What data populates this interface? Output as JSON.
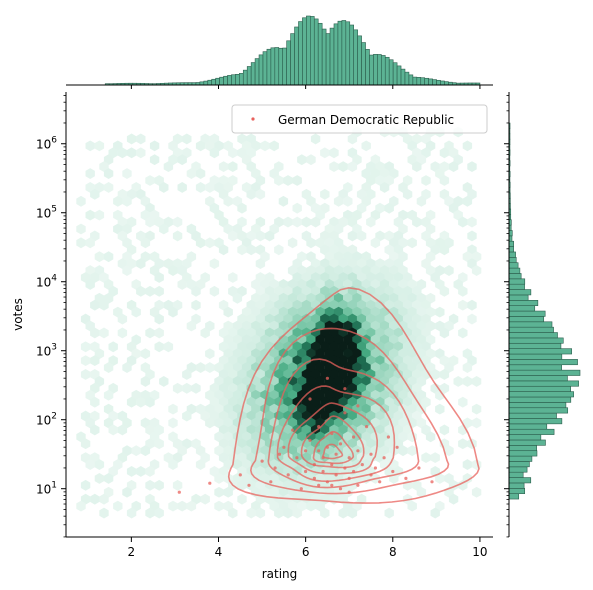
{
  "chart_data": {
    "type": "jointplot",
    "xlabel": "rating",
    "ylabel": "votes",
    "xlim": [
      0.5,
      10.3
    ],
    "ylim_log10": [
      0.3,
      6.75
    ],
    "y_scale": "log",
    "x_ticks": [
      2,
      4,
      6,
      8,
      10
    ],
    "x_tick_labels": [
      "2",
      "4",
      "6",
      "8",
      "10"
    ],
    "y_ticks": [
      1,
      2,
      3,
      4,
      5,
      6
    ],
    "y_tick_labels": [
      {
        "base": "10",
        "exp": "1"
      },
      {
        "base": "10",
        "exp": "2"
      },
      {
        "base": "10",
        "exp": "3"
      },
      {
        "base": "10",
        "exp": "4"
      },
      {
        "base": "10",
        "exp": "5"
      },
      {
        "base": "10",
        "exp": "6"
      }
    ],
    "legend": {
      "placement": "top-right",
      "entries": [
        "German Democratic Republic"
      ]
    },
    "colors": {
      "hexbin": "#2e9e7a",
      "hist": "#5cb394",
      "hist_edge": "#2b5d4c",
      "series": "#e8615c"
    },
    "main_series": {
      "kind": "hexbin",
      "center": {
        "rating": 6.4,
        "log10_votes": 2.6
      },
      "spread": {
        "rating": 1.05,
        "log10_votes": 0.8
      },
      "high_density_cells": [
        {
          "rating": 6.6,
          "log10_votes": 2.9
        },
        {
          "rating": 6.4,
          "log10_votes": 2.5
        },
        {
          "rating": 6.8,
          "log10_votes": 3.1
        },
        {
          "rating": 6.2,
          "log10_votes": 2.2
        },
        {
          "rating": 6.9,
          "log10_votes": 2.7
        }
      ]
    },
    "overlay_series": {
      "name": "German Democratic Republic",
      "kind": "scatter+kde",
      "kde_center": {
        "rating": 6.8,
        "log10_votes": 1.35
      },
      "points": [
        [
          3.1,
          0.95
        ],
        [
          3.8,
          1.08
        ],
        [
          4.5,
          1.2
        ],
        [
          4.7,
          1.05
        ],
        [
          5.0,
          1.4
        ],
        [
          5.2,
          1.1
        ],
        [
          5.3,
          1.3
        ],
        [
          5.5,
          1.6
        ],
        [
          5.6,
          1.2
        ],
        [
          5.8,
          1.45
        ],
        [
          5.9,
          1.0
        ],
        [
          6.0,
          1.25
        ],
        [
          6.0,
          1.55
        ],
        [
          6.1,
          1.7
        ],
        [
          6.2,
          1.15
        ],
        [
          6.2,
          1.35
        ],
        [
          6.3,
          1.9
        ],
        [
          6.3,
          1.05
        ],
        [
          6.4,
          1.45
        ],
        [
          6.4,
          1.25
        ],
        [
          6.5,
          1.6
        ],
        [
          6.5,
          1.1
        ],
        [
          6.6,
          1.35
        ],
        [
          6.6,
          1.8
        ],
        [
          6.7,
          1.2
        ],
        [
          6.7,
          1.5
        ],
        [
          6.8,
          1.0
        ],
        [
          6.8,
          1.65
        ],
        [
          6.9,
          1.3
        ],
        [
          6.9,
          2.1
        ],
        [
          7.0,
          1.15
        ],
        [
          7.0,
          1.45
        ],
        [
          7.1,
          1.25
        ],
        [
          7.1,
          1.75
        ],
        [
          7.2,
          1.05
        ],
        [
          7.2,
          1.55
        ],
        [
          7.3,
          1.35
        ],
        [
          7.4,
          1.9
        ],
        [
          7.5,
          1.2
        ],
        [
          7.5,
          1.5
        ],
        [
          7.6,
          1.3
        ],
        [
          7.7,
          1.1
        ],
        [
          7.8,
          1.45
        ],
        [
          8.0,
          1.25
        ],
        [
          8.1,
          1.6
        ],
        [
          8.3,
          1.15
        ],
        [
          8.6,
          1.3
        ],
        [
          8.9,
          1.1
        ],
        [
          6.1,
          2.3
        ],
        [
          6.5,
          2.6
        ],
        [
          6.9,
          2.45
        ],
        [
          7.2,
          2.2
        ],
        [
          5.7,
          1.85
        ],
        [
          6.3,
          1.55
        ],
        [
          6.6,
          1.05
        ],
        [
          7.0,
          0.95
        ],
        [
          5.4,
          1.5
        ],
        [
          7.9,
          1.75
        ]
      ]
    },
    "marginal_x": {
      "kind": "histogram",
      "center": 6.4,
      "spread": 1.05,
      "range": [
        1.4,
        10.0
      ]
    },
    "marginal_y": {
      "kind": "histogram",
      "center_log10": 2.6,
      "spread_log10": 0.8,
      "range_log10": [
        0.85,
        6.3
      ]
    }
  }
}
